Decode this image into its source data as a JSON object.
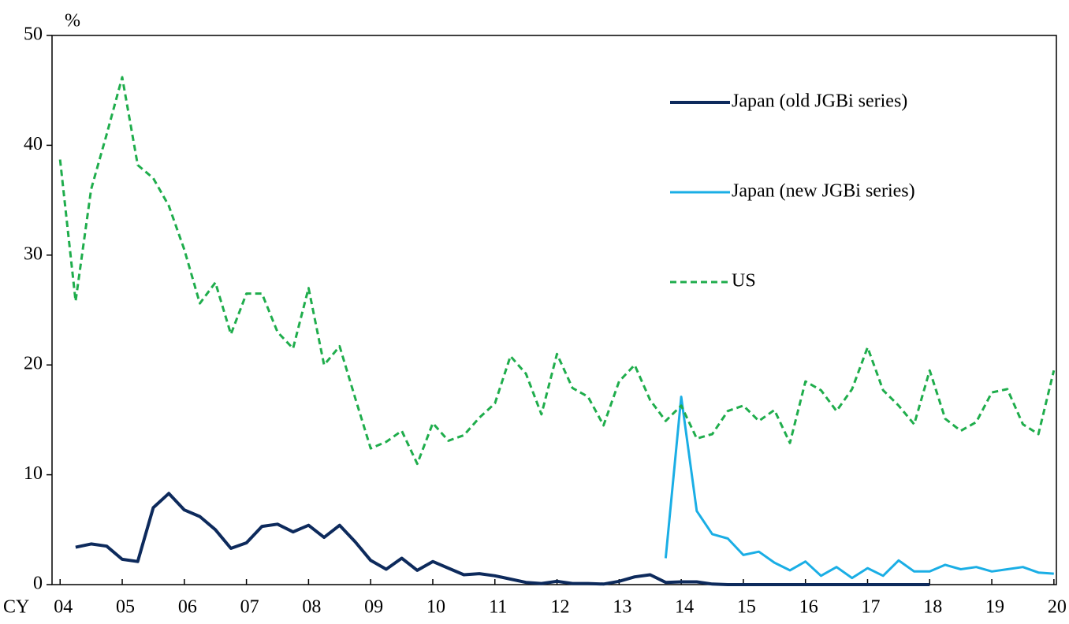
{
  "chart_data": {
    "type": "line",
    "y_unit_label": "%",
    "x_unit_label": "CY",
    "x": [
      2004,
      2004.25,
      2004.5,
      2004.75,
      2005,
      2005.25,
      2005.5,
      2005.75,
      2006,
      2006.25,
      2006.5,
      2006.75,
      2007,
      2007.25,
      2007.5,
      2007.75,
      2008,
      2008.25,
      2008.5,
      2008.75,
      2009,
      2009.25,
      2009.5,
      2009.75,
      2010,
      2010.25,
      2010.5,
      2010.75,
      2011,
      2011.25,
      2011.5,
      2011.75,
      2012,
      2012.25,
      2012.5,
      2012.75,
      2013,
      2013.25,
      2013.5,
      2013.75,
      2014,
      2014.25,
      2014.5,
      2014.75,
      2015,
      2015.25,
      2015.5,
      2015.75,
      2016,
      2016.25,
      2016.5,
      2016.75,
      2017,
      2017.25,
      2017.5,
      2017.75,
      2018,
      2018.25,
      2018.5,
      2018.75,
      2019,
      2019.25,
      2019.5,
      2019.75,
      2020
    ],
    "series": [
      {
        "name": "Japan (old JGBi series)",
        "color": "#0d2a5c",
        "dash": false,
        "values": [
          null,
          3.4,
          3.7,
          3.5,
          2.3,
          2.1,
          7.0,
          8.3,
          6.8,
          6.2,
          5.0,
          3.3,
          3.8,
          5.3,
          5.5,
          4.8,
          5.4,
          4.3,
          5.4,
          3.9,
          2.2,
          1.4,
          2.4,
          1.3,
          2.1,
          1.5,
          0.9,
          1.0,
          0.8,
          0.5,
          0.2,
          0.1,
          0.3,
          0.1,
          0.1,
          0.05,
          0.3,
          0.7,
          0.9,
          0.2,
          0.25,
          0.25,
          0.05,
          0,
          0,
          0,
          0,
          0,
          0,
          0,
          0,
          0,
          0,
          0,
          0,
          0,
          0,
          null,
          null,
          null,
          null,
          null,
          null,
          null,
          null
        ]
      },
      {
        "name": "Japan (new JGBi series)",
        "color": "#1aaee5",
        "dash": false,
        "values": [
          null,
          null,
          null,
          null,
          null,
          null,
          null,
          null,
          null,
          null,
          null,
          null,
          null,
          null,
          null,
          null,
          null,
          null,
          null,
          null,
          null,
          null,
          null,
          null,
          null,
          null,
          null,
          null,
          null,
          null,
          null,
          null,
          null,
          null,
          null,
          null,
          null,
          null,
          null,
          2.4,
          17.1,
          6.7,
          4.6,
          4.2,
          2.7,
          3.0,
          2.0,
          1.3,
          2.1,
          0.8,
          1.6,
          0.6,
          1.5,
          0.8,
          2.2,
          1.2,
          1.2,
          1.8,
          1.4,
          1.6,
          1.2,
          1.4,
          1.6,
          1.1,
          1.0
        ]
      },
      {
        "name": "US",
        "color": "#1fad4c",
        "dash": true,
        "values": [
          38.7,
          25.8,
          36,
          41,
          46.2,
          38.2,
          37,
          34.5,
          30.5,
          25.6,
          27.5,
          22.8,
          26.5,
          26.5,
          23,
          21.5,
          27,
          20,
          21.7,
          17,
          12.4,
          13,
          14,
          11,
          14.7,
          13.1,
          13.6,
          15.2,
          16.5,
          20.8,
          19.2,
          15.5,
          21,
          17.9,
          17.1,
          14.5,
          18.5,
          20,
          16.8,
          14.9,
          16.3,
          13.3,
          13.7,
          15.8,
          16.3,
          14.9,
          15.9,
          12.9,
          18.5,
          17.7,
          15.8,
          17.8,
          21.6,
          17.7,
          16.3,
          14.6,
          19.5,
          15.1,
          14,
          14.8,
          17.5,
          17.8,
          14.6,
          13.7,
          19.5
        ]
      }
    ],
    "xlim": [
      2003.87,
      2020.04
    ],
    "xticks": [
      {
        "value": 2004,
        "label": "04"
      },
      {
        "value": 2005,
        "label": "05"
      },
      {
        "value": 2006,
        "label": "06"
      },
      {
        "value": 2007,
        "label": "07"
      },
      {
        "value": 2008,
        "label": "08"
      },
      {
        "value": 2009,
        "label": "09"
      },
      {
        "value": 2010,
        "label": "10"
      },
      {
        "value": 2011,
        "label": "11"
      },
      {
        "value": 2012,
        "label": "12"
      },
      {
        "value": 2013,
        "label": "13"
      },
      {
        "value": 2014,
        "label": "14"
      },
      {
        "value": 2015,
        "label": "15"
      },
      {
        "value": 2016,
        "label": "16"
      },
      {
        "value": 2017,
        "label": "17"
      },
      {
        "value": 2018,
        "label": "18"
      },
      {
        "value": 2019,
        "label": "19"
      },
      {
        "value": 2020,
        "label": "20"
      }
    ],
    "ylim": [
      0,
      50
    ],
    "yticks": [
      0,
      10,
      20,
      30,
      40,
      50
    ],
    "grid": false
  }
}
